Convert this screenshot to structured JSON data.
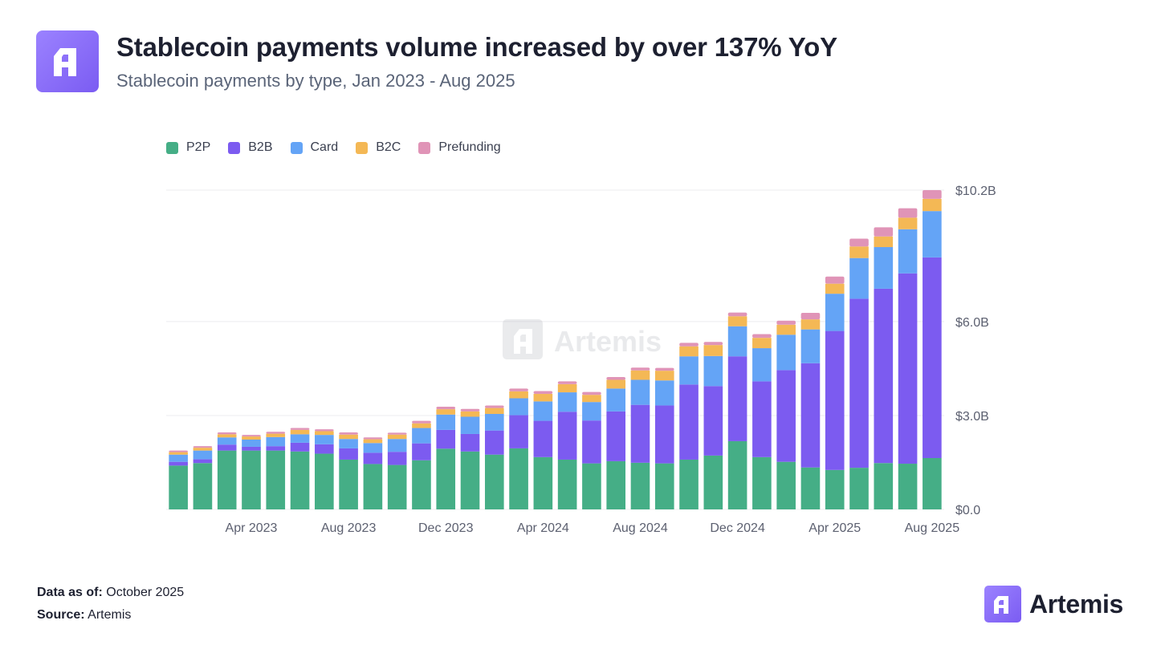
{
  "header": {
    "title": "Stablecoin payments volume increased by over 137% YoY",
    "subtitle": "Stablecoin payments by type, Jan 2023 - Aug 2025"
  },
  "watermark": {
    "text": "Artemis"
  },
  "footer": {
    "data_as_of_label": "Data as of:",
    "data_as_of_value": "October 2025",
    "source_label": "Source:",
    "source_value": "Artemis"
  },
  "brand": {
    "name": "Artemis"
  },
  "colors": {
    "P2P": "#45ae86",
    "B2B": "#7c5bf0",
    "Card": "#64a4f6",
    "B2C": "#f4b855",
    "Prefunding": "#e094b7",
    "grid": "#ececef",
    "axis_text": "#5c6070"
  },
  "chart_data": {
    "type": "bar",
    "stacked": true,
    "categories": [
      "Jan 2023",
      "Feb 2023",
      "Mar 2023",
      "Apr 2023",
      "May 2023",
      "Jun 2023",
      "Jul 2023",
      "Aug 2023",
      "Sep 2023",
      "Oct 2023",
      "Nov 2023",
      "Dec 2023",
      "Jan 2024",
      "Feb 2024",
      "Mar 2024",
      "Apr 2024",
      "May 2024",
      "Jun 2024",
      "Jul 2024",
      "Aug 2024",
      "Sep 2024",
      "Oct 2024",
      "Nov 2024",
      "Dec 2024",
      "Jan 2025",
      "Feb 2025",
      "Mar 2025",
      "Apr 2025",
      "May 2025",
      "Jun 2025",
      "Jul 2025",
      "Aug 2025"
    ],
    "x_tick_labels": [
      "Apr 2023",
      "Aug 2023",
      "Dec 2023",
      "Apr 2024",
      "Aug 2024",
      "Dec 2024",
      "Apr 2025",
      "Aug 2025"
    ],
    "x_tick_categories": [
      "Apr 2023",
      "Aug 2023",
      "Dec 2023",
      "Apr 2024",
      "Aug 2024",
      "Dec 2024",
      "Apr 2025",
      "Aug 2025"
    ],
    "y_tick_values": [
      0,
      3.0,
      6.0,
      10.2
    ],
    "y_tick_labels": [
      "$0.0",
      "$3.0B",
      "$6.0B",
      "$10.2B"
    ],
    "ylim": [
      0,
      10.2
    ],
    "y_axis_position": "right",
    "legend_position": "top-left",
    "grid": true,
    "series": [
      {
        "name": "P2P",
        "values": [
          1.4,
          1.48,
          1.88,
          1.88,
          1.88,
          1.85,
          1.78,
          1.59,
          1.45,
          1.42,
          1.57,
          1.94,
          1.85,
          1.75,
          1.95,
          1.67,
          1.59,
          1.47,
          1.54,
          1.49,
          1.47,
          1.59,
          1.72,
          2.18,
          1.67,
          1.52,
          1.34,
          1.26,
          1.33,
          1.48,
          1.46,
          1.64
        ]
      },
      {
        "name": "B2B",
        "values": [
          0.12,
          0.12,
          0.19,
          0.12,
          0.14,
          0.28,
          0.3,
          0.36,
          0.36,
          0.42,
          0.54,
          0.6,
          0.56,
          0.77,
          1.06,
          1.16,
          1.53,
          1.37,
          1.59,
          1.85,
          1.85,
          2.4,
          2.22,
          2.71,
          2.42,
          2.93,
          3.33,
          4.44,
          5.4,
          5.57,
          6.08,
          6.41
        ]
      },
      {
        "name": "Card",
        "values": [
          0.23,
          0.28,
          0.23,
          0.23,
          0.29,
          0.27,
          0.3,
          0.3,
          0.31,
          0.41,
          0.49,
          0.49,
          0.55,
          0.53,
          0.54,
          0.62,
          0.62,
          0.59,
          0.73,
          0.8,
          0.8,
          0.9,
          0.96,
          0.96,
          1.06,
          1.13,
          1.08,
          1.19,
          1.3,
          1.33,
          1.41,
          1.48
        ]
      },
      {
        "name": "B2C",
        "values": [
          0.08,
          0.09,
          0.1,
          0.1,
          0.11,
          0.14,
          0.12,
          0.14,
          0.12,
          0.14,
          0.15,
          0.17,
          0.17,
          0.19,
          0.22,
          0.24,
          0.26,
          0.23,
          0.28,
          0.3,
          0.31,
          0.32,
          0.35,
          0.32,
          0.33,
          0.32,
          0.32,
          0.32,
          0.37,
          0.34,
          0.37,
          0.39
        ]
      },
      {
        "name": "Prefunding",
        "values": [
          0.05,
          0.05,
          0.06,
          0.05,
          0.06,
          0.06,
          0.06,
          0.07,
          0.06,
          0.06,
          0.08,
          0.08,
          0.08,
          0.08,
          0.09,
          0.09,
          0.09,
          0.09,
          0.09,
          0.09,
          0.09,
          0.11,
          0.1,
          0.12,
          0.12,
          0.13,
          0.21,
          0.23,
          0.25,
          0.29,
          0.3,
          0.28
        ]
      }
    ]
  }
}
